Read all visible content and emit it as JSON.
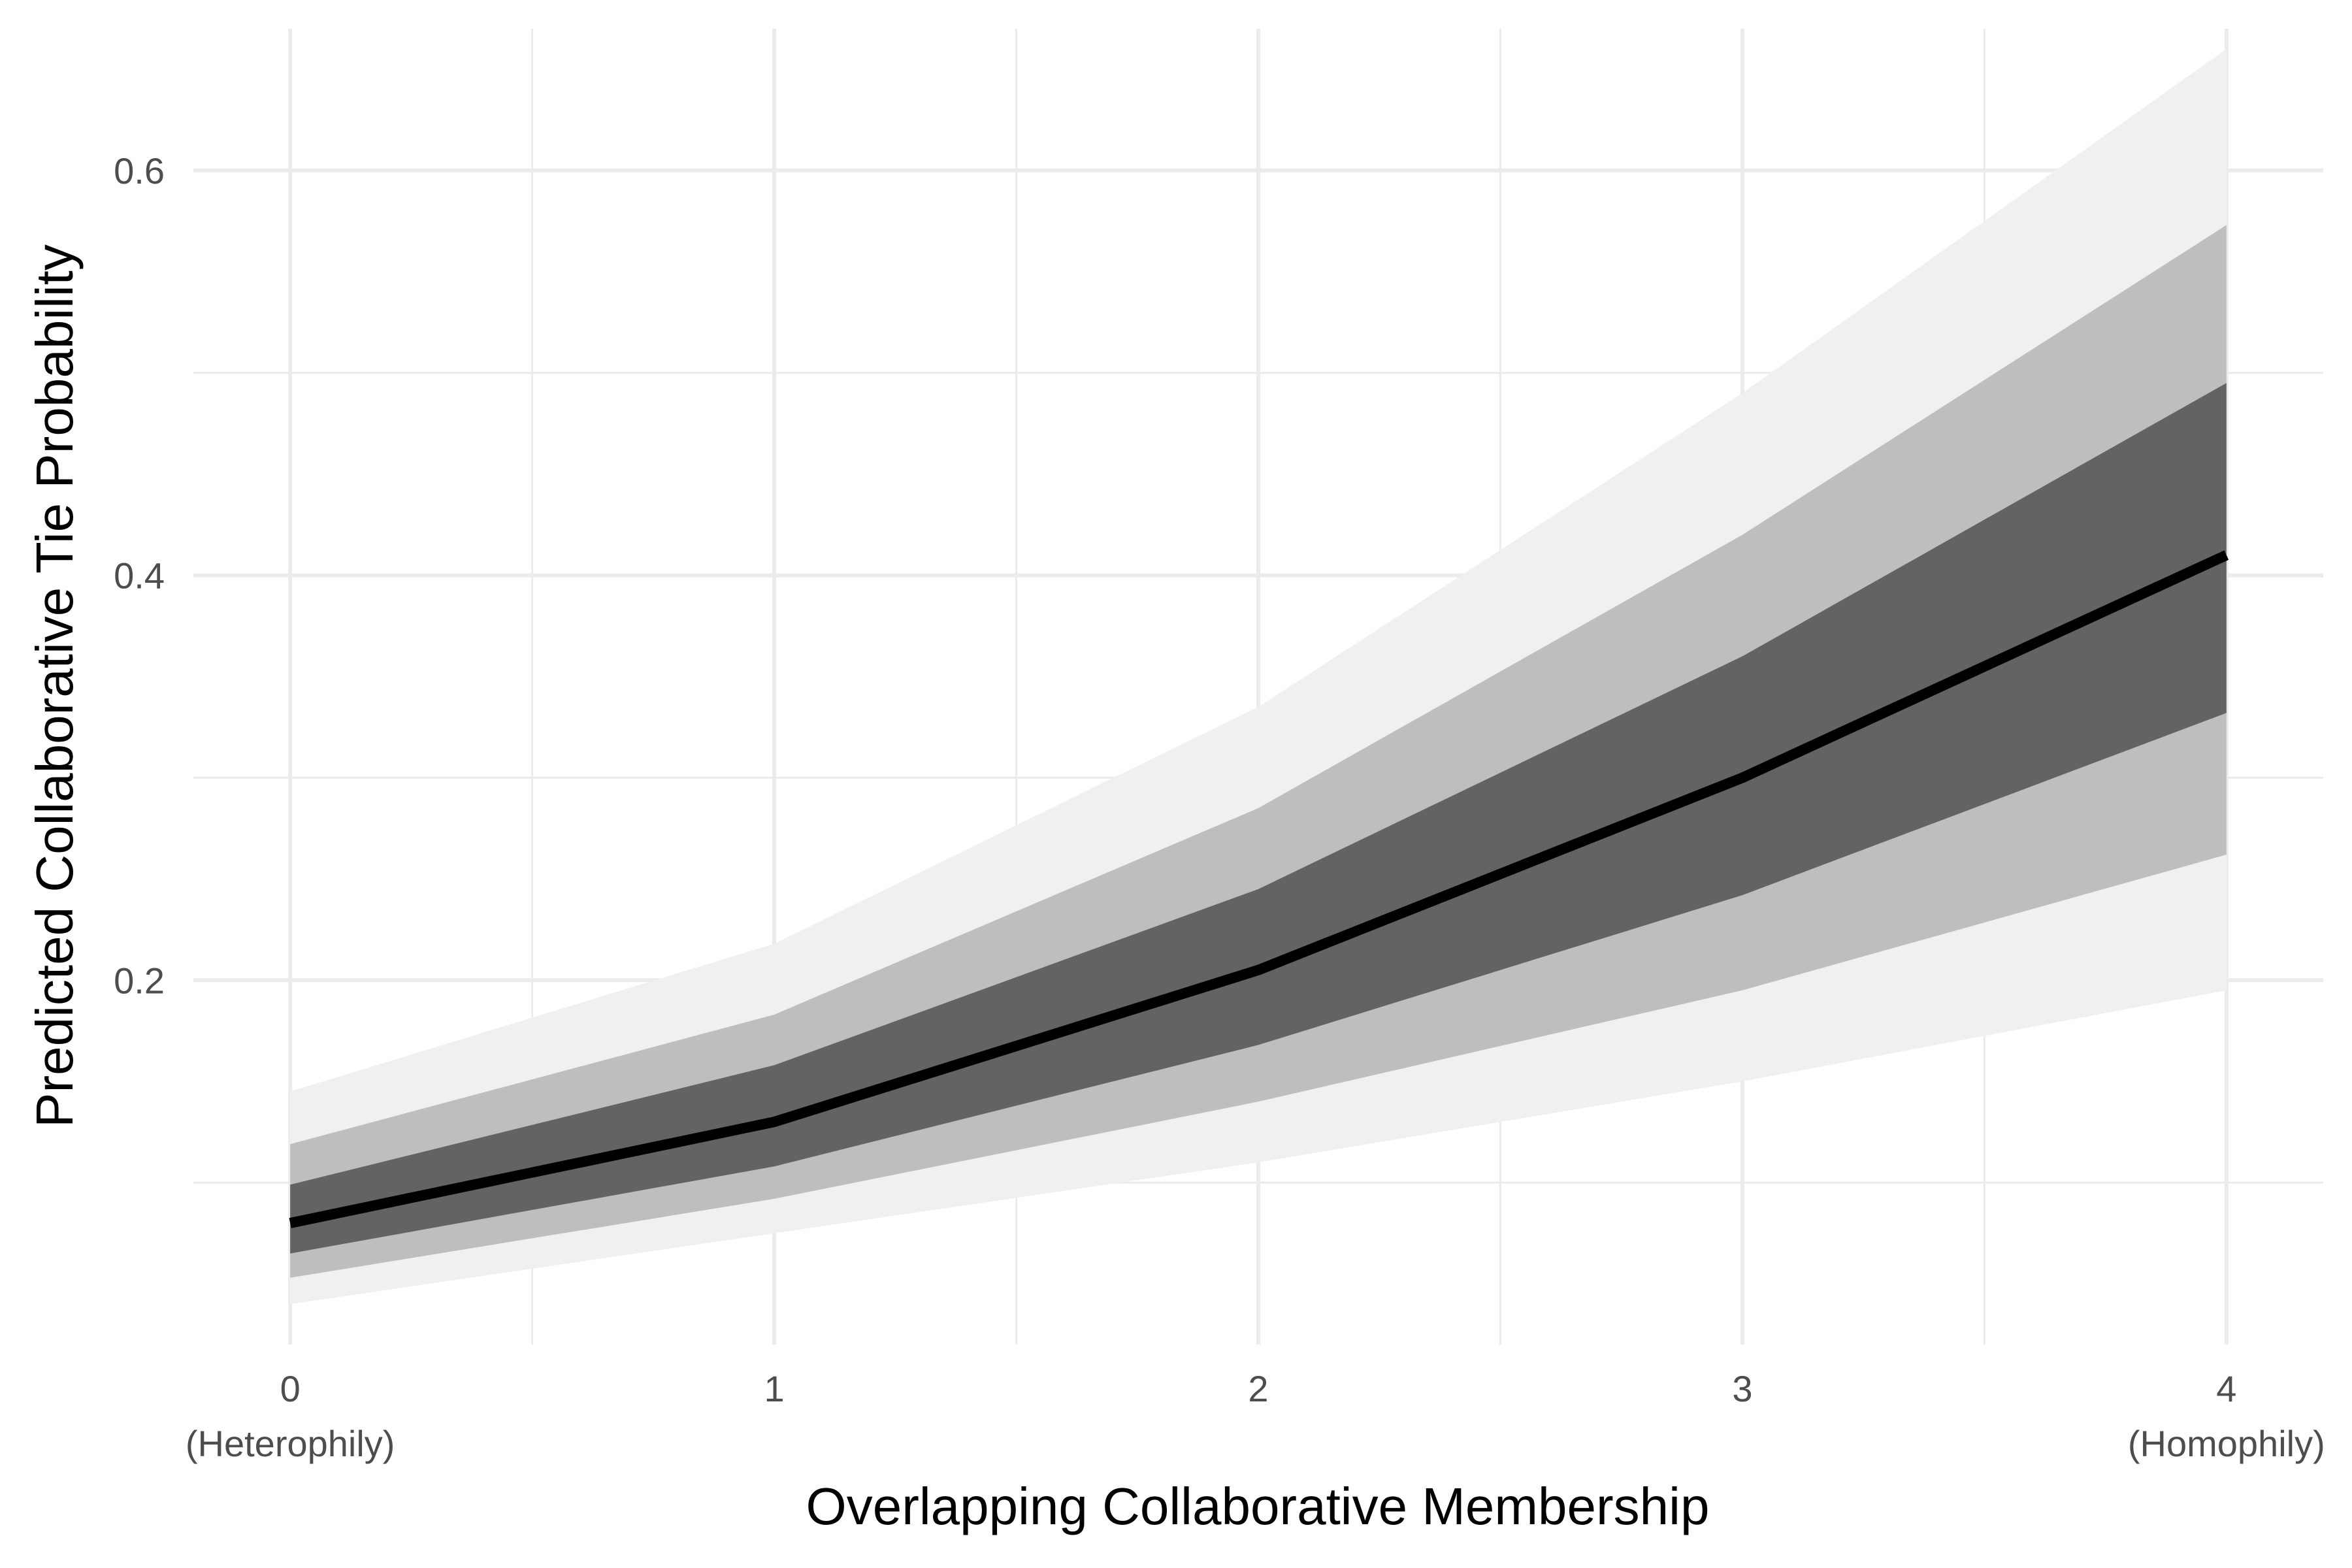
{
  "chart_data": {
    "type": "line",
    "title": "",
    "xlabel": "Overlapping Collaborative Membership",
    "ylabel": "Predicted Collaborative Tie Probability",
    "x": [
      0,
      1,
      2,
      3,
      4
    ],
    "x_tick_labels": [
      "0\n(Heterophily)",
      "1",
      "2",
      "3",
      "4\n(Homophily)"
    ],
    "y_ticks": [
      0.2,
      0.4,
      0.6
    ],
    "y_tick_labels": [
      "0.2",
      "0.4",
      "0.6"
    ],
    "xlim": [
      -0.2,
      4.2
    ],
    "ylim": [
      0.02,
      0.67
    ],
    "grid": true,
    "series": [
      {
        "values": [
          0.08,
          0.13,
          0.205,
          0.3,
          0.41
        ]
      }
    ],
    "bands": [
      {
        "level": "outer",
        "lower": [
          0.04,
          0.075,
          0.11,
          0.15,
          0.195
        ],
        "upper": [
          0.145,
          0.218,
          0.335,
          0.49,
          0.66
        ],
        "color": "#f0f0f0"
      },
      {
        "level": "middle",
        "lower": [
          0.053,
          0.092,
          0.14,
          0.195,
          0.262
        ],
        "upper": [
          0.119,
          0.183,
          0.285,
          0.42,
          0.573
        ],
        "color": "#bebebe"
      },
      {
        "level": "inner",
        "lower": [
          0.065,
          0.108,
          0.168,
          0.242,
          0.332
        ],
        "upper": [
          0.099,
          0.158,
          0.245,
          0.36,
          0.495
        ],
        "color": "#636363"
      }
    ],
    "line_color": "#000000"
  }
}
